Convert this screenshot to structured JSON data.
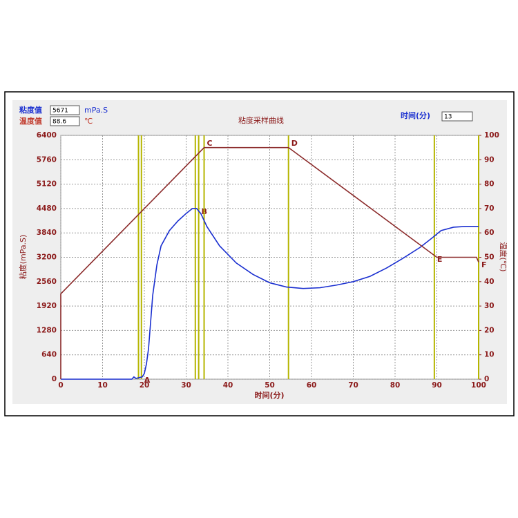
{
  "ui": {
    "viscosity_label": "粘度值",
    "viscosity_value": "5671",
    "viscosity_unit": "mPa.S",
    "temp_label": "温度值",
    "temp_value": "88.6",
    "temp_unit": "℃",
    "time_label": "时间(分)",
    "time_value": "13"
  },
  "chart_data": {
    "type": "line",
    "title": "粘度采样曲线",
    "xlabel": "时间(分)",
    "ylabel": "粘度(mPa.S)",
    "y2label": "温度(℃)",
    "xlim": [
      0,
      100
    ],
    "xticks": [
      0,
      10,
      20,
      30,
      40,
      50,
      60,
      70,
      80,
      90,
      100
    ],
    "ylim": [
      0,
      6400
    ],
    "yticks": [
      0,
      640,
      1280,
      1920,
      2560,
      3200,
      3840,
      4480,
      5120,
      5760,
      6400
    ],
    "y2lim": [
      0,
      100
    ],
    "y2ticks": [
      0,
      10,
      20,
      30,
      40,
      50,
      60,
      70,
      80,
      90,
      100
    ],
    "grid": true,
    "series": [
      {
        "name": "粘度",
        "color": "#1a2fd0",
        "x": [
          0,
          17,
          17.5,
          18,
          19.5,
          20,
          20.5,
          21,
          21.5,
          22,
          23,
          24,
          26,
          28,
          30,
          31.5,
          32.5,
          33.5,
          35,
          38,
          42,
          46,
          50,
          54,
          58,
          62,
          66,
          70,
          74,
          78,
          82,
          86,
          89,
          91,
          94,
          97,
          100
        ],
        "values": [
          0,
          0,
          60,
          20,
          60,
          150,
          400,
          800,
          1500,
          2200,
          3000,
          3500,
          3900,
          4150,
          4350,
          4480,
          4480,
          4350,
          4000,
          3500,
          3050,
          2750,
          2530,
          2420,
          2380,
          2400,
          2470,
          2560,
          2700,
          2920,
          3180,
          3460,
          3720,
          3900,
          3990,
          4010,
          4010
        ]
      },
      {
        "name": "温度",
        "color": "#8b2a2a",
        "axis": "y2",
        "x": [
          0,
          0,
          34.3,
          54.5,
          90,
          99.5,
          100
        ],
        "values": [
          0,
          35,
          95,
          95,
          50,
          50,
          48
        ]
      }
    ],
    "marker_color": "#b5b500",
    "extra_lines": [
      18.6,
      32.2
    ],
    "markers": [
      {
        "label": "A",
        "x": 19.3
      },
      {
        "label": "B",
        "x": 33
      },
      {
        "label": "C",
        "x": 34.3
      },
      {
        "label": "D",
        "x": 54.5
      },
      {
        "label": "E",
        "x": 89.4
      },
      {
        "label": "F",
        "x": 100
      }
    ]
  }
}
